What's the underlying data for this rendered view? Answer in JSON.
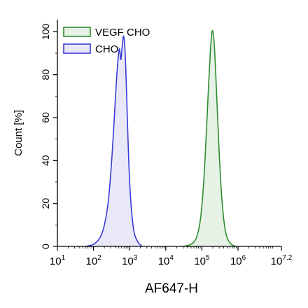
{
  "chart_data": {
    "type": "area",
    "xlabel": "AF647-H",
    "ylabel": "Count [%]",
    "x_scale": "log",
    "xlim": [
      10,
      15848931.92
    ],
    "ylim": [
      0,
      105
    ],
    "x_ticks": [
      {
        "base": "10",
        "exp": "1"
      },
      {
        "base": "10",
        "exp": "2"
      },
      {
        "base": "10",
        "exp": "3"
      },
      {
        "base": "10",
        "exp": "4"
      },
      {
        "base": "10",
        "exp": "5"
      },
      {
        "base": "10",
        "exp": "6"
      },
      {
        "base": "10",
        "exp": "7.2"
      }
    ],
    "y_ticks": [
      "0",
      "20",
      "40",
      "60",
      "80",
      "100"
    ],
    "legend_position": "top-left",
    "series": [
      {
        "name": "VEGF CHO",
        "color": "#2e8b2e",
        "fill": "#e6f2e6",
        "x": [
          30000,
          50000,
          70000,
          90000,
          110000,
          130000,
          150000,
          170000,
          190000,
          210000,
          230000,
          260000,
          300000,
          350000,
          420000,
          500000,
          650000,
          850000
        ],
        "y": [
          0,
          1,
          4,
          12,
          28,
          50,
          72,
          90,
          100,
          98,
          88,
          68,
          44,
          24,
          10,
          4,
          1,
          0
        ]
      },
      {
        "name": "CHO",
        "color": "#3b3bd6",
        "fill": "#e8e8f8",
        "x": [
          60,
          100,
          150,
          200,
          260,
          330,
          400,
          460,
          520,
          570,
          620,
          680,
          750,
          820,
          900,
          1000,
          1150,
          1350,
          1700,
          2200
        ],
        "y": [
          0,
          1,
          4,
          10,
          22,
          44,
          68,
          84,
          92,
          87,
          93,
          98,
          90,
          72,
          50,
          30,
          15,
          6,
          2,
          0
        ]
      }
    ]
  }
}
